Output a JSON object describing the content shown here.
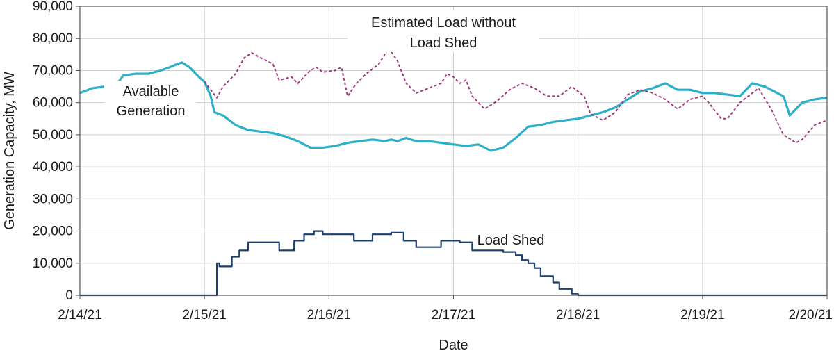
{
  "chart_data": {
    "type": "line",
    "xlabel": "Date",
    "ylabel": "Generation Capacity, MW",
    "xlim": [
      0,
      6
    ],
    "ylim": [
      0,
      90000
    ],
    "x_ticks": [
      "2/14/21",
      "2/15/21",
      "2/16/21",
      "2/17/21",
      "2/18/21",
      "2/19/21",
      "2/20/21"
    ],
    "y_ticks": [
      "0",
      "10,000",
      "20,000",
      "30,000",
      "40,000",
      "50,000",
      "60,000",
      "70,000",
      "80,000",
      "90,000"
    ],
    "grid": true,
    "legend": "none",
    "x_units": "days since 2/14/21",
    "annotations": {
      "available_generation": [
        "Available",
        "Generation"
      ],
      "estimated_load": [
        "Estimated Load without",
        "Load Shed"
      ],
      "load_shed": "Load Shed"
    },
    "series": [
      {
        "name": "Available Generation",
        "color": "#2bb0c8",
        "style": "solid",
        "points": [
          [
            0.0,
            63000
          ],
          [
            0.1,
            64500
          ],
          [
            0.2,
            65000
          ],
          [
            0.3,
            66000
          ],
          [
            0.35,
            68500
          ],
          [
            0.45,
            69000
          ],
          [
            0.55,
            69000
          ],
          [
            0.65,
            70000
          ],
          [
            0.72,
            71000
          ],
          [
            0.78,
            72000
          ],
          [
            0.82,
            72500
          ],
          [
            0.88,
            71000
          ],
          [
            0.93,
            69000
          ],
          [
            0.97,
            67500
          ],
          [
            1.0,
            66500
          ],
          [
            1.05,
            62000
          ],
          [
            1.08,
            57000
          ],
          [
            1.15,
            56000
          ],
          [
            1.25,
            53000
          ],
          [
            1.35,
            51500
          ],
          [
            1.45,
            51000
          ],
          [
            1.55,
            50500
          ],
          [
            1.65,
            49500
          ],
          [
            1.75,
            48000
          ],
          [
            1.85,
            46000
          ],
          [
            1.95,
            46000
          ],
          [
            2.05,
            46500
          ],
          [
            2.15,
            47500
          ],
          [
            2.25,
            48000
          ],
          [
            2.35,
            48500
          ],
          [
            2.45,
            48000
          ],
          [
            2.5,
            48500
          ],
          [
            2.55,
            48000
          ],
          [
            2.62,
            49000
          ],
          [
            2.7,
            48000
          ],
          [
            2.8,
            48000
          ],
          [
            2.9,
            47500
          ],
          [
            3.0,
            47000
          ],
          [
            3.1,
            46500
          ],
          [
            3.2,
            47000
          ],
          [
            3.3,
            45000
          ],
          [
            3.4,
            46000
          ],
          [
            3.5,
            49000
          ],
          [
            3.6,
            52500
          ],
          [
            3.7,
            53000
          ],
          [
            3.8,
            54000
          ],
          [
            3.9,
            54500
          ],
          [
            4.0,
            55000
          ],
          [
            4.1,
            56000
          ],
          [
            4.2,
            57000
          ],
          [
            4.3,
            58500
          ],
          [
            4.4,
            61000
          ],
          [
            4.5,
            63500
          ],
          [
            4.6,
            64500
          ],
          [
            4.7,
            66000
          ],
          [
            4.8,
            64000
          ],
          [
            4.9,
            64000
          ],
          [
            5.0,
            63000
          ],
          [
            5.1,
            63000
          ],
          [
            5.2,
            62500
          ],
          [
            5.3,
            62000
          ],
          [
            5.4,
            66000
          ],
          [
            5.5,
            65000
          ],
          [
            5.6,
            63000
          ],
          [
            5.65,
            62000
          ],
          [
            5.7,
            56000
          ],
          [
            5.75,
            58000
          ],
          [
            5.8,
            60000
          ],
          [
            5.9,
            61000
          ],
          [
            6.0,
            61500
          ]
        ]
      },
      {
        "name": "Estimated Load without Load Shed",
        "color": "#a23a7a",
        "style": "dashed",
        "points": [
          [
            1.0,
            66500
          ],
          [
            1.05,
            64000
          ],
          [
            1.1,
            61500
          ],
          [
            1.15,
            65000
          ],
          [
            1.25,
            69000
          ],
          [
            1.32,
            74000
          ],
          [
            1.38,
            75500
          ],
          [
            1.45,
            74000
          ],
          [
            1.55,
            72000
          ],
          [
            1.6,
            67000
          ],
          [
            1.7,
            68000
          ],
          [
            1.75,
            66000
          ],
          [
            1.85,
            70000
          ],
          [
            1.9,
            71000
          ],
          [
            1.95,
            69500
          ],
          [
            2.05,
            70000
          ],
          [
            2.1,
            71000
          ],
          [
            2.15,
            62000
          ],
          [
            2.22,
            66000
          ],
          [
            2.3,
            69000
          ],
          [
            2.4,
            72000
          ],
          [
            2.48,
            77000
          ],
          [
            2.55,
            73000
          ],
          [
            2.62,
            66000
          ],
          [
            2.7,
            63000
          ],
          [
            2.8,
            64500
          ],
          [
            2.9,
            66000
          ],
          [
            2.95,
            69000
          ],
          [
            3.0,
            68000
          ],
          [
            3.05,
            66000
          ],
          [
            3.1,
            67000
          ],
          [
            3.15,
            62000
          ],
          [
            3.25,
            58000
          ],
          [
            3.35,
            60500
          ],
          [
            3.45,
            64000
          ],
          [
            3.55,
            66000
          ],
          [
            3.65,
            64500
          ],
          [
            3.75,
            62000
          ],
          [
            3.85,
            62000
          ],
          [
            3.95,
            65000
          ],
          [
            4.05,
            62000
          ],
          [
            4.1,
            56500
          ],
          [
            4.2,
            54500
          ],
          [
            4.3,
            57000
          ],
          [
            4.4,
            62500
          ],
          [
            4.5,
            64000
          ],
          [
            4.6,
            63000
          ],
          [
            4.7,
            61000
          ],
          [
            4.8,
            58000
          ],
          [
            4.9,
            61000
          ],
          [
            5.0,
            62000
          ],
          [
            5.05,
            60000
          ],
          [
            5.15,
            55000
          ],
          [
            5.2,
            55000
          ],
          [
            5.3,
            60000
          ],
          [
            5.4,
            63000
          ],
          [
            5.45,
            64500
          ],
          [
            5.55,
            58000
          ],
          [
            5.65,
            50000
          ],
          [
            5.75,
            47500
          ],
          [
            5.8,
            48500
          ],
          [
            5.9,
            53000
          ],
          [
            6.0,
            54500
          ]
        ]
      },
      {
        "name": "Load Shed",
        "color": "#1c3f6e",
        "style": "step",
        "points": [
          [
            0.0,
            0
          ],
          [
            1.08,
            0
          ],
          [
            1.1,
            10000
          ],
          [
            1.12,
            9000
          ],
          [
            1.2,
            9000
          ],
          [
            1.22,
            12000
          ],
          [
            1.28,
            14000
          ],
          [
            1.35,
            16500
          ],
          [
            1.55,
            16500
          ],
          [
            1.6,
            14000
          ],
          [
            1.7,
            14000
          ],
          [
            1.72,
            17000
          ],
          [
            1.77,
            17000
          ],
          [
            1.8,
            19000
          ],
          [
            1.88,
            20000
          ],
          [
            1.95,
            19000
          ],
          [
            2.1,
            19000
          ],
          [
            2.2,
            17000
          ],
          [
            2.3,
            17000
          ],
          [
            2.35,
            19000
          ],
          [
            2.5,
            19500
          ],
          [
            2.6,
            17000
          ],
          [
            2.7,
            15000
          ],
          [
            2.85,
            15000
          ],
          [
            2.9,
            17000
          ],
          [
            3.05,
            16500
          ],
          [
            3.15,
            14000
          ],
          [
            3.35,
            14000
          ],
          [
            3.4,
            13500
          ],
          [
            3.5,
            12500
          ],
          [
            3.55,
            11000
          ],
          [
            3.6,
            10000
          ],
          [
            3.65,
            8500
          ],
          [
            3.7,
            6000
          ],
          [
            3.8,
            4000
          ],
          [
            3.85,
            2000
          ],
          [
            3.95,
            500
          ],
          [
            4.0,
            0
          ],
          [
            6.0,
            0
          ]
        ]
      }
    ]
  }
}
